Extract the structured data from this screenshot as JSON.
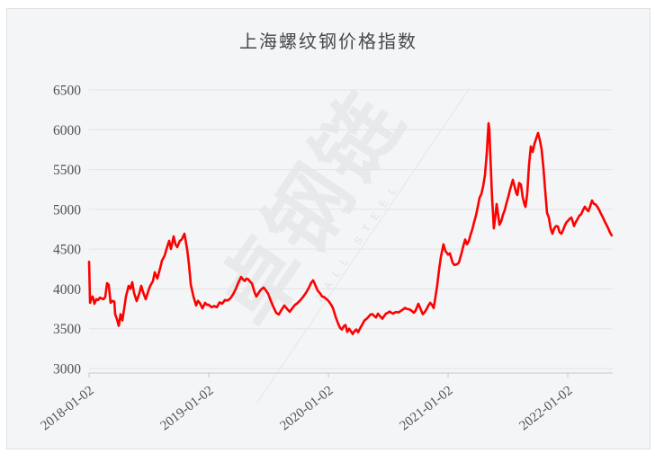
{
  "colors": {
    "page_bg": "#ffffff",
    "panel_bg": "#f4f5f6",
    "panel_border": "#dfe0e3",
    "gridline": "#e3e4e7",
    "axis": "#c7c8cc",
    "label_text": "#4e5055",
    "title_text": "#46474c",
    "series_red": "#fd0101"
  },
  "watermark": {
    "text": "卓钢链",
    "subtext": "ZALL STEEL"
  },
  "chart_data": {
    "type": "line",
    "title": "上海螺纹钢价格指数",
    "xlabel": "",
    "ylabel": "",
    "x_unit": "years since 2018-01-02",
    "xlim": [
      0,
      4.38
    ],
    "ylim": [
      3000,
      6500
    ],
    "grid": "horizontal",
    "legend": false,
    "yticks": [
      {
        "value": 6500,
        "label": "6500"
      },
      {
        "value": 6000,
        "label": "6000"
      },
      {
        "value": 5500,
        "label": "5500"
      },
      {
        "value": 5000,
        "label": "5000"
      },
      {
        "value": 4500,
        "label": "4500"
      },
      {
        "value": 4000,
        "label": "4000"
      },
      {
        "value": 3500,
        "label": "3500"
      },
      {
        "value": 3000,
        "label": "3000"
      }
    ],
    "xticks": [
      {
        "t": 0,
        "label": "2018-01-02"
      },
      {
        "t": 1,
        "label": "2019-01-02"
      },
      {
        "t": 2,
        "label": "2020-01-02"
      },
      {
        "t": 3,
        "label": "2021-01-02"
      },
      {
        "t": 4,
        "label": "2022-01-02"
      }
    ],
    "series": [
      {
        "name": "上海螺纹钢价格指数",
        "color": "#fd0101",
        "points": [
          [
            0,
            4340
          ],
          [
            0.008,
            3825
          ],
          [
            0.019,
            3880
          ],
          [
            0.03,
            3904
          ],
          [
            0.045,
            3813
          ],
          [
            0.06,
            3870
          ],
          [
            0.075,
            3860
          ],
          [
            0.09,
            3890
          ],
          [
            0.105,
            3880
          ],
          [
            0.12,
            3870
          ],
          [
            0.135,
            3900
          ],
          [
            0.15,
            4073
          ],
          [
            0.165,
            4050
          ],
          [
            0.18,
            3825
          ],
          [
            0.195,
            3850
          ],
          [
            0.211,
            3840
          ],
          [
            0.218,
            3682
          ],
          [
            0.233,
            3620
          ],
          [
            0.248,
            3536
          ],
          [
            0.263,
            3682
          ],
          [
            0.278,
            3604
          ],
          [
            0.293,
            3750
          ],
          [
            0.308,
            3904
          ],
          [
            0.331,
            4039
          ],
          [
            0.346,
            4000
          ],
          [
            0.361,
            4084
          ],
          [
            0.376,
            3950
          ],
          [
            0.398,
            3847
          ],
          [
            0.421,
            3950
          ],
          [
            0.436,
            4039
          ],
          [
            0.451,
            3960
          ],
          [
            0.474,
            3870
          ],
          [
            0.496,
            3980
          ],
          [
            0.511,
            4039
          ],
          [
            0.534,
            4100
          ],
          [
            0.549,
            4208
          ],
          [
            0.571,
            4130
          ],
          [
            0.594,
            4260
          ],
          [
            0.609,
            4355
          ],
          [
            0.632,
            4420
          ],
          [
            0.647,
            4502
          ],
          [
            0.669,
            4604
          ],
          [
            0.684,
            4502
          ],
          [
            0.707,
            4660
          ],
          [
            0.722,
            4560
          ],
          [
            0.737,
            4525
          ],
          [
            0.759,
            4604
          ],
          [
            0.774,
            4620
          ],
          [
            0.797,
            4694
          ],
          [
            0.82,
            4491
          ],
          [
            0.835,
            4300
          ],
          [
            0.85,
            4051
          ],
          [
            0.872,
            3904
          ],
          [
            0.895,
            3791
          ],
          [
            0.91,
            3850
          ],
          [
            0.925,
            3825
          ],
          [
            0.947,
            3757
          ],
          [
            0.97,
            3825
          ],
          [
            0.985,
            3800
          ],
          [
            1,
            3800
          ],
          [
            1.023,
            3770
          ],
          [
            1.045,
            3785
          ],
          [
            1.068,
            3770
          ],
          [
            1.09,
            3830
          ],
          [
            1.113,
            3815
          ],
          [
            1.135,
            3860
          ],
          [
            1.158,
            3855
          ],
          [
            1.18,
            3880
          ],
          [
            1.203,
            3930
          ],
          [
            1.226,
            4000
          ],
          [
            1.248,
            4080
          ],
          [
            1.271,
            4150
          ],
          [
            1.286,
            4120
          ],
          [
            1.301,
            4100
          ],
          [
            1.316,
            4130
          ],
          [
            1.331,
            4120
          ],
          [
            1.346,
            4090
          ],
          [
            1.361,
            4072
          ],
          [
            1.383,
            3960
          ],
          [
            1.398,
            3904
          ],
          [
            1.421,
            3960
          ],
          [
            1.436,
            3990
          ],
          [
            1.459,
            4017
          ],
          [
            1.474,
            3990
          ],
          [
            1.496,
            3940
          ],
          [
            1.519,
            3850
          ],
          [
            1.541,
            3770
          ],
          [
            1.564,
            3700
          ],
          [
            1.586,
            3679
          ],
          [
            1.609,
            3740
          ],
          [
            1.632,
            3791
          ],
          [
            1.654,
            3750
          ],
          [
            1.677,
            3712
          ],
          [
            1.699,
            3760
          ],
          [
            1.722,
            3800
          ],
          [
            1.744,
            3825
          ],
          [
            1.767,
            3860
          ],
          [
            1.789,
            3900
          ],
          [
            1.812,
            3950
          ],
          [
            1.835,
            4010
          ],
          [
            1.857,
            4080
          ],
          [
            1.872,
            4108
          ],
          [
            1.887,
            4060
          ],
          [
            1.91,
            3980
          ],
          [
            1.932,
            3940
          ],
          [
            1.947,
            3904
          ],
          [
            1.962,
            3900
          ],
          [
            1.985,
            3870
          ],
          [
            2,
            3850
          ],
          [
            2.023,
            3800
          ],
          [
            2.038,
            3758
          ],
          [
            2.06,
            3650
          ],
          [
            2.083,
            3560
          ],
          [
            2.098,
            3510
          ],
          [
            2.113,
            3490
          ],
          [
            2.128,
            3530
          ],
          [
            2.143,
            3546
          ],
          [
            2.158,
            3460
          ],
          [
            2.173,
            3500
          ],
          [
            2.188,
            3470
          ],
          [
            2.203,
            3434
          ],
          [
            2.218,
            3470
          ],
          [
            2.233,
            3490
          ],
          [
            2.248,
            3455
          ],
          [
            2.263,
            3500
          ],
          [
            2.286,
            3560
          ],
          [
            2.301,
            3603
          ],
          [
            2.323,
            3630
          ],
          [
            2.338,
            3655
          ],
          [
            2.353,
            3680
          ],
          [
            2.368,
            3682
          ],
          [
            2.383,
            3660
          ],
          [
            2.398,
            3640
          ],
          [
            2.414,
            3690
          ],
          [
            2.429,
            3660
          ],
          [
            2.451,
            3626
          ],
          [
            2.466,
            3660
          ],
          [
            2.481,
            3690
          ],
          [
            2.496,
            3700
          ],
          [
            2.511,
            3716
          ],
          [
            2.526,
            3700
          ],
          [
            2.541,
            3690
          ],
          [
            2.556,
            3705
          ],
          [
            2.571,
            3710
          ],
          [
            2.586,
            3705
          ],
          [
            2.602,
            3720
          ],
          [
            2.617,
            3735
          ],
          [
            2.639,
            3761
          ],
          [
            2.654,
            3750
          ],
          [
            2.669,
            3745
          ],
          [
            2.684,
            3738
          ],
          [
            2.699,
            3720
          ],
          [
            2.714,
            3700
          ],
          [
            2.729,
            3730
          ],
          [
            2.752,
            3813
          ],
          [
            2.767,
            3760
          ],
          [
            2.789,
            3682
          ],
          [
            2.805,
            3710
          ],
          [
            2.82,
            3745
          ],
          [
            2.835,
            3790
          ],
          [
            2.85,
            3825
          ],
          [
            2.865,
            3800
          ],
          [
            2.88,
            3760
          ],
          [
            2.895,
            3900
          ],
          [
            2.91,
            4050
          ],
          [
            2.925,
            4240
          ],
          [
            2.94,
            4400
          ],
          [
            2.962,
            4560
          ],
          [
            2.977,
            4480
          ],
          [
            3,
            4430
          ],
          [
            3.015,
            4446
          ],
          [
            3.038,
            4330
          ],
          [
            3.053,
            4299
          ],
          [
            3.075,
            4310
          ],
          [
            3.09,
            4330
          ],
          [
            3.113,
            4450
          ],
          [
            3.128,
            4540
          ],
          [
            3.143,
            4620
          ],
          [
            3.158,
            4560
          ],
          [
            3.173,
            4600
          ],
          [
            3.188,
            4680
          ],
          [
            3.203,
            4750
          ],
          [
            3.218,
            4840
          ],
          [
            3.233,
            4920
          ],
          [
            3.248,
            5030
          ],
          [
            3.263,
            5145
          ],
          [
            3.278,
            5190
          ],
          [
            3.293,
            5290
          ],
          [
            3.308,
            5430
          ],
          [
            3.323,
            5700
          ],
          [
            3.338,
            6080
          ],
          [
            3.346,
            5990
          ],
          [
            3.353,
            5700
          ],
          [
            3.368,
            5150
          ],
          [
            3.383,
            4760
          ],
          [
            3.398,
            4950
          ],
          [
            3.406,
            5066
          ],
          [
            3.421,
            4900
          ],
          [
            3.429,
            4807
          ],
          [
            3.444,
            4850
          ],
          [
            3.459,
            4930
          ],
          [
            3.474,
            4990
          ],
          [
            3.489,
            5080
          ],
          [
            3.504,
            5160
          ],
          [
            3.519,
            5250
          ],
          [
            3.534,
            5330
          ],
          [
            3.541,
            5371
          ],
          [
            3.556,
            5290
          ],
          [
            3.571,
            5200
          ],
          [
            3.579,
            5180
          ],
          [
            3.594,
            5330
          ],
          [
            3.609,
            5310
          ],
          [
            3.624,
            5150
          ],
          [
            3.639,
            5060
          ],
          [
            3.647,
            5030
          ],
          [
            3.662,
            5200
          ],
          [
            3.677,
            5560
          ],
          [
            3.692,
            5790
          ],
          [
            3.707,
            5720
          ],
          [
            3.722,
            5820
          ],
          [
            3.737,
            5890
          ],
          [
            3.752,
            5958
          ],
          [
            3.767,
            5870
          ],
          [
            3.782,
            5750
          ],
          [
            3.797,
            5520
          ],
          [
            3.812,
            5230
          ],
          [
            3.827,
            4954
          ],
          [
            3.842,
            4897
          ],
          [
            3.857,
            4760
          ],
          [
            3.872,
            4694
          ],
          [
            3.887,
            4760
          ],
          [
            3.902,
            4790
          ],
          [
            3.917,
            4785
          ],
          [
            3.932,
            4710
          ],
          [
            3.947,
            4694
          ],
          [
            3.962,
            4740
          ],
          [
            3.977,
            4800
          ],
          [
            3.992,
            4841
          ],
          [
            4,
            4850
          ],
          [
            4.015,
            4880
          ],
          [
            4.03,
            4897
          ],
          [
            4.045,
            4830
          ],
          [
            4.053,
            4790
          ],
          [
            4.068,
            4840
          ],
          [
            4.083,
            4880
          ],
          [
            4.098,
            4920
          ],
          [
            4.113,
            4940
          ],
          [
            4.128,
            4990
          ],
          [
            4.143,
            5032
          ],
          [
            4.158,
            5000
          ],
          [
            4.173,
            4977
          ],
          [
            4.188,
            5040
          ],
          [
            4.203,
            5110
          ],
          [
            4.218,
            5070
          ],
          [
            4.233,
            5060
          ],
          [
            4.248,
            5030
          ],
          [
            4.263,
            4990
          ],
          [
            4.278,
            4943
          ],
          [
            4.293,
            4900
          ],
          [
            4.308,
            4850
          ],
          [
            4.323,
            4807
          ],
          [
            4.338,
            4760
          ],
          [
            4.353,
            4710
          ],
          [
            4.368,
            4672
          ]
        ]
      }
    ]
  }
}
